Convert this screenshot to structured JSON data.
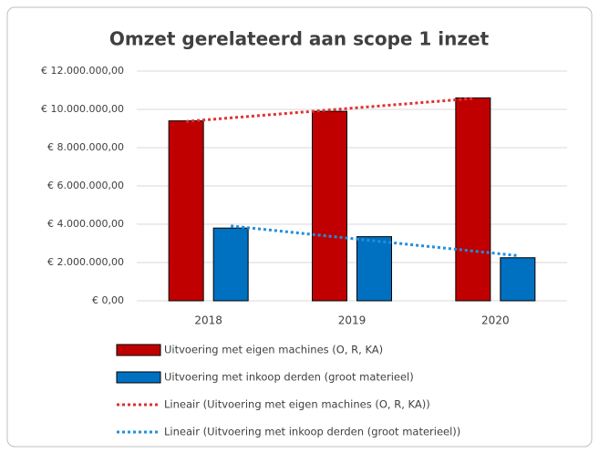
{
  "chart_data": {
    "type": "bar",
    "title": "Omzet gerelateerd aan scope 1 inzet",
    "categories": [
      "2018",
      "2019",
      "2020"
    ],
    "series": [
      {
        "name": "Uitvoering met eigen machines (O, R, KA)",
        "color": "#c00000",
        "values": [
          9400000,
          9900000,
          10600000
        ]
      },
      {
        "name": "Uitvoering met inkoop derden (groot materieel)",
        "color": "#0070c0",
        "values": [
          3800000,
          3350000,
          2250000
        ]
      },
      {
        "name": "Lineair (Uitvoering met eigen machines (O, R, KA))",
        "color": "#e03232",
        "type": "trend",
        "values": [
          9370000,
          9970000,
          10570000
        ]
      },
      {
        "name": "Lineair (Uitvoering met inkoop derden (groot materieel))",
        "color": "#1f8fdf",
        "type": "trend",
        "values": [
          3910000,
          3130000,
          2360000
        ]
      }
    ],
    "ylim": [
      0,
      12000000
    ],
    "yticks": [
      {
        "value": 0,
        "label": "€ 0,00"
      },
      {
        "value": 2000000,
        "label": "€ 2.000.000,00"
      },
      {
        "value": 4000000,
        "label": "€ 4.000.000,00"
      },
      {
        "value": 6000000,
        "label": "€ 6.000.000,00"
      },
      {
        "value": 8000000,
        "label": "€ 8.000.000,00"
      },
      {
        "value": 10000000,
        "label": "€ 10.000.000,00"
      },
      {
        "value": 12000000,
        "label": "€ 12.000.000,00"
      }
    ],
    "grid": true
  }
}
